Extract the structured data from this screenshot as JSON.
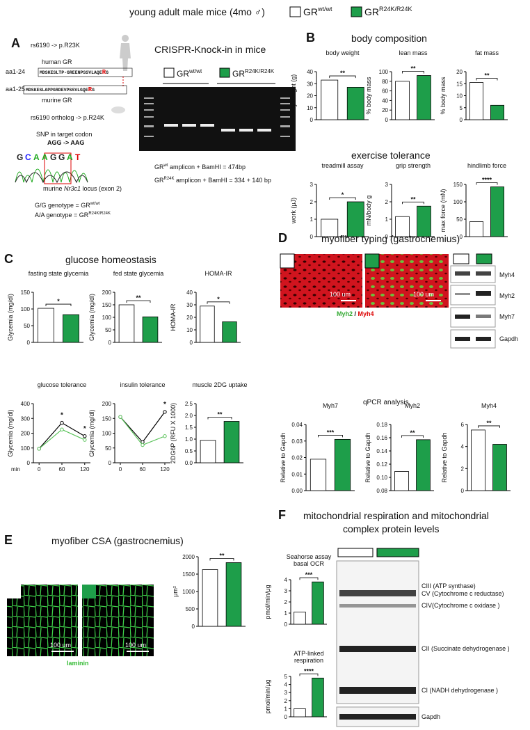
{
  "header": {
    "title": "young adult male mice (4mo ♂)",
    "wt_base": "GR",
    "wt_sup": "wt/wt",
    "ko_base": "GR",
    "ko_sup": "R24K/R24K"
  },
  "panel_a": {
    "letter": "A",
    "human_variant": "rs6190 -> p.R23K",
    "human_range": "aa1-24",
    "human_label": "human GR",
    "human_seq": "MDSKESLTP-GREENPSSVLAQE",
    "human_res": "R",
    "human_tail": "G",
    "murine_range": "aa1-25",
    "murine_seq": "MDSKESLAPPGRDEVPSSVLGQE",
    "murine_res": "R",
    "murine_tail": "G",
    "murine_label": "murine GR",
    "murine_variant": "rs6190 ortholog -> p.R24K",
    "snp_title": "SNP in target codon",
    "snp_change": "AGG -> AAG",
    "chromatogram": [
      "G",
      "C",
      "A",
      "A",
      "G",
      "G",
      "A",
      "T"
    ],
    "locus_pre": "murine ",
    "locus_gene": "Nr3c1",
    "locus_post": " locus (exon 2)",
    "gg_text": "G/G genotype = GR",
    "gg_sup": "wt/wt",
    "aa_text": "A/A genotype = GR",
    "aa_sup": "R24K/R24K",
    "crispr_title": "CRISPR-Knock-in in mice",
    "gel_wt_base": "GR",
    "gel_wt_sup": "wt/wt",
    "gel_ko_base": "GR",
    "gel_ko_sup": "R24K/R24K",
    "amp_wt_base": "GR",
    "amp_wt_sup": "wt",
    "amp_wt_text": " amplicon + BamHI = 474bp",
    "amp_ko_base": "GR",
    "amp_ko_sup": "R24K",
    "amp_ko_text": " amplicon + BamHI = 334 + 140 bp"
  },
  "panel_b": {
    "letter": "B",
    "title": "body composition",
    "subtitle": "exercise tolerance"
  },
  "panel_c": {
    "letter": "C",
    "title": "glucose homeostasis"
  },
  "panel_d": {
    "letter": "D",
    "title": "myofiber typing (gastrocnemius)",
    "scale_1": "100 um",
    "scale_2": "100 um",
    "stain_green": "Myh2",
    "stain_sep": " / ",
    "stain_red": "Myh4",
    "blots": [
      "Myh4",
      "Myh2",
      "Myh7",
      "Gapdh"
    ],
    "qpcr_title": "qPCR analysis"
  },
  "panel_e": {
    "letter": "E",
    "title": "myofiber CSA (gastrocnemius)",
    "scale_1": "100 um",
    "scale_2": "100 um",
    "stain": "laminin"
  },
  "panel_f": {
    "letter": "F",
    "title_1": "mitochondrial respiration and mitochondrial",
    "title_2": "complex protein levels",
    "blots": [
      "CIII (ATP synthase)",
      "CV (Cytochrome c reductase)",
      "CIV(Cytochrome c oxidase )",
      "CII (Succinate dehydrogenase )",
      "CI (NADH dehydrogenase )",
      "Gapdh"
    ]
  },
  "chart_data": [
    {
      "type": "bar",
      "title": "body weight",
      "ylabel": "body weight (g)",
      "values": [
        33,
        27
      ],
      "colors": [
        "#ffffff",
        "#1e9e4a"
      ],
      "ylim": [
        0,
        40
      ],
      "yticks": [
        0,
        10,
        20,
        30,
        40
      ],
      "annotation": "**"
    },
    {
      "type": "bar",
      "title": "lean mass",
      "ylabel": "% body mass",
      "values": [
        80,
        92
      ],
      "colors": [
        "#ffffff",
        "#1e9e4a"
      ],
      "ylim": [
        0,
        100
      ],
      "yticks": [
        0,
        20,
        40,
        60,
        80,
        100
      ],
      "annotation": "**"
    },
    {
      "type": "bar",
      "title": "fat mass",
      "ylabel": "% body mass",
      "values": [
        15.5,
        6
      ],
      "colors": [
        "#ffffff",
        "#1e9e4a"
      ],
      "ylim": [
        0,
        20
      ],
      "yticks": [
        0,
        5,
        10,
        15,
        20
      ],
      "annotation": "**"
    },
    {
      "type": "bar",
      "title": "treadmill assay",
      "ylabel": "work (μJ)",
      "values": [
        1.0,
        2.0
      ],
      "colors": [
        "#ffffff",
        "#1e9e4a"
      ],
      "ylim": [
        0,
        3
      ],
      "yticks": [
        0,
        1,
        2,
        3
      ],
      "annotation": "*"
    },
    {
      "type": "bar",
      "title": "grip strength",
      "ylabel": "mN/body g",
      "values": [
        1.15,
        1.75
      ],
      "colors": [
        "#ffffff",
        "#1e9e4a"
      ],
      "ylim": [
        0,
        3
      ],
      "yticks": [
        0,
        1,
        2,
        3
      ],
      "annotation": "**"
    },
    {
      "type": "bar",
      "title": "hindlimb force",
      "ylabel": "max force (mN)",
      "values": [
        43,
        143
      ],
      "colors": [
        "#ffffff",
        "#1e9e4a"
      ],
      "ylim": [
        0,
        150
      ],
      "yticks": [
        0,
        50,
        100,
        150
      ],
      "annotation": "****"
    },
    {
      "type": "bar",
      "title": "fasting state glycemia",
      "ylabel": "Glycemia (mg/dl)",
      "values": [
        102,
        83
      ],
      "colors": [
        "#ffffff",
        "#1e9e4a"
      ],
      "ylim": [
        0,
        150
      ],
      "yticks": [
        0,
        50,
        100,
        150
      ],
      "annotation": "*"
    },
    {
      "type": "bar",
      "title": "fed state glycemia",
      "ylabel": "Glycemia (mg/dl)",
      "values": [
        150,
        102
      ],
      "colors": [
        "#ffffff",
        "#1e9e4a"
      ],
      "ylim": [
        0,
        200
      ],
      "yticks": [
        0,
        50,
        100,
        150,
        200
      ],
      "annotation": "**"
    },
    {
      "type": "bar",
      "title": "HOMA-IR",
      "ylabel": "HOMA-IR",
      "values": [
        29,
        16.5
      ],
      "colors": [
        "#ffffff",
        "#1e9e4a"
      ],
      "ylim": [
        0,
        40
      ],
      "yticks": [
        0,
        10,
        20,
        30,
        40
      ],
      "annotation": "*"
    },
    {
      "type": "line",
      "title": "glucose tolerance",
      "ylabel": "Glycemia (mg/dl)",
      "xlabel": "min",
      "x": [
        0,
        60,
        120
      ],
      "series": [
        {
          "color": "#000000",
          "values": [
            95,
            270,
            180
          ]
        },
        {
          "color": "#5cc35c",
          "values": [
            95,
            225,
            155
          ]
        }
      ],
      "xlim": [
        -15,
        135
      ],
      "ylim": [
        0,
        400
      ],
      "xticks": [
        0,
        60,
        120
      ],
      "yticks": [
        0,
        100,
        200,
        300,
        400
      ],
      "annotations": [
        {
          "x": 60,
          "text": "*"
        },
        {
          "x": 120,
          "text": "*"
        }
      ]
    },
    {
      "type": "line",
      "title": "insulin tolerance",
      "ylabel": "Glycemia (mg/dl)",
      "x": [
        0,
        60,
        120
      ],
      "series": [
        {
          "color": "#000000",
          "values": [
            155,
            70,
            172
          ]
        },
        {
          "color": "#5cc35c",
          "values": [
            155,
            60,
            90
          ]
        }
      ],
      "xlim": [
        -15,
        135
      ],
      "ylim": [
        0,
        200
      ],
      "xticks": [
        0,
        60,
        120
      ],
      "yticks": [
        0,
        50,
        100,
        150,
        200
      ],
      "annotations": [
        {
          "x": 120,
          "text": "*"
        }
      ]
    },
    {
      "type": "bar",
      "title": "muscle 2DG uptake",
      "ylabel": "2DG6P (RFU X 1000)",
      "values": [
        0.95,
        1.75
      ],
      "colors": [
        "#ffffff",
        "#1e9e4a"
      ],
      "ylim": [
        0,
        2.5
      ],
      "yticks": [
        {
          "value": 0,
          "label": "0.0"
        },
        0.5,
        {
          "value": 1,
          "label": "1.0"
        },
        1.5,
        {
          "value": 2,
          "label": "2.0"
        },
        2.5
      ],
      "annotation": "**"
    },
    {
      "type": "bar",
      "title": "Myh7",
      "ylabel": "Relative to Gapdh",
      "values": [
        0.019,
        0.031
      ],
      "colors": [
        "#ffffff",
        "#1e9e4a"
      ],
      "ylim": [
        0,
        0.04
      ],
      "yticks": [
        {
          "value": 0,
          "label": "0.00"
        },
        {
          "value": 0.01,
          "label": "0.01"
        },
        {
          "value": 0.02,
          "label": "0.02"
        },
        {
          "value": 0.03,
          "label": "0.03"
        },
        {
          "value": 0.04,
          "label": "0.04"
        }
      ],
      "annotation": "***"
    },
    {
      "type": "bar",
      "title": "Myh2",
      "ylabel": "Relative to Gapdh",
      "values": [
        0.109,
        0.157
      ],
      "colors": [
        "#ffffff",
        "#1e9e4a"
      ],
      "ylim": [
        0.08,
        0.18
      ],
      "yticks": [
        0.08,
        {
          "value": 0.1,
          "label": "0.10"
        },
        0.12,
        0.14,
        0.16,
        0.18
      ],
      "annotation": "**"
    },
    {
      "type": "bar",
      "title": "Myh4",
      "ylabel": "Relative to Gapdh",
      "values": [
        5.5,
        4.2
      ],
      "colors": [
        "#ffffff",
        "#1e9e4a"
      ],
      "ylim": [
        0,
        6
      ],
      "yticks": [
        0,
        2,
        4,
        6
      ],
      "annotation": "**"
    },
    {
      "type": "bar",
      "ylabel": "μm²",
      "values": [
        1630,
        1830
      ],
      "colors": [
        "#ffffff",
        "#1e9e4a"
      ],
      "ylim": [
        0,
        2000
      ],
      "yticks": [
        0,
        500,
        1000,
        1500,
        2000
      ],
      "annotation": "**"
    },
    {
      "type": "bar",
      "title": "Seahorse assay",
      "subtitle": "basal OCR",
      "ylabel": "pmol/min/μg",
      "values": [
        1.1,
        3.8
      ],
      "colors": [
        "#ffffff",
        "#1e9e4a"
      ],
      "ylim": [
        0,
        4
      ],
      "yticks": [
        0,
        1,
        2,
        3,
        4
      ],
      "annotation": "***"
    },
    {
      "type": "bar",
      "title": "ATP-linked",
      "subtitle": "respiration",
      "ylabel": "pmol/min/μg",
      "values": [
        1.0,
        4.8
      ],
      "colors": [
        "#ffffff",
        "#1e9e4a"
      ],
      "ylim": [
        0,
        5
      ],
      "yticks": [
        0,
        1,
        2,
        3,
        4,
        5
      ],
      "annotation": "****"
    }
  ]
}
